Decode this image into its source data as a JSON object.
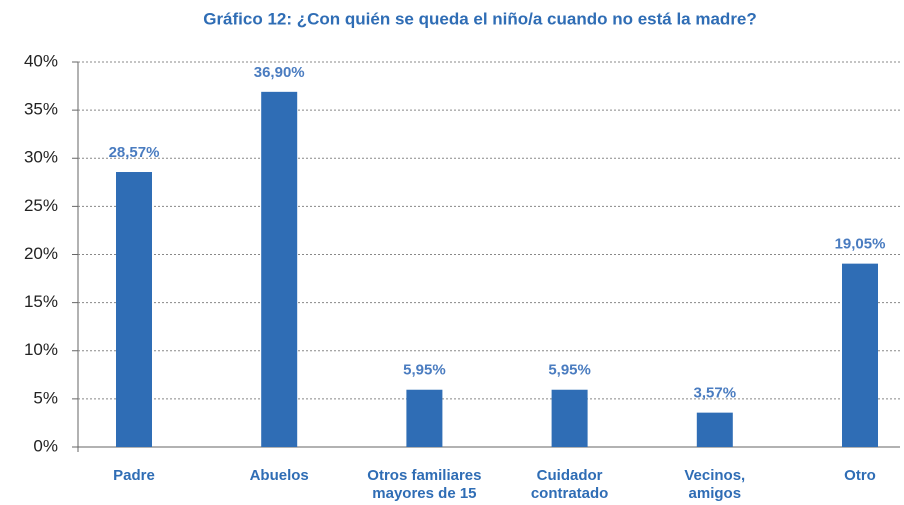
{
  "chart_data": {
    "type": "bar",
    "title": "Gráfico 12: ¿Con quién se queda el niño/a cuando no está la madre?",
    "categories": [
      "Padre",
      "Abuelos",
      "Otros familiares\nmayores de 15",
      "Cuidador\ncontratado",
      "Vecinos,\namigos",
      "Otro"
    ],
    "values": [
      28.57,
      36.9,
      5.95,
      5.95,
      3.57,
      19.05
    ],
    "value_labels": [
      "28,57%",
      "36,90%",
      "5,95%",
      "5,95%",
      "3,57%",
      "19,05%"
    ],
    "color": "#2f6db5",
    "ylim": [
      0,
      40
    ],
    "yticks": [
      {
        "value": 0,
        "label": "0%"
      },
      {
        "value": 5,
        "label": "5%"
      },
      {
        "value": 10,
        "label": "10%"
      },
      {
        "value": 15,
        "label": "15%"
      },
      {
        "value": 20,
        "label": "20%"
      },
      {
        "value": 25,
        "label": "25%"
      },
      {
        "value": 30,
        "label": "30%"
      },
      {
        "value": 35,
        "label": "35%"
      },
      {
        "value": 40,
        "label": "40%"
      }
    ],
    "grid": true
  }
}
